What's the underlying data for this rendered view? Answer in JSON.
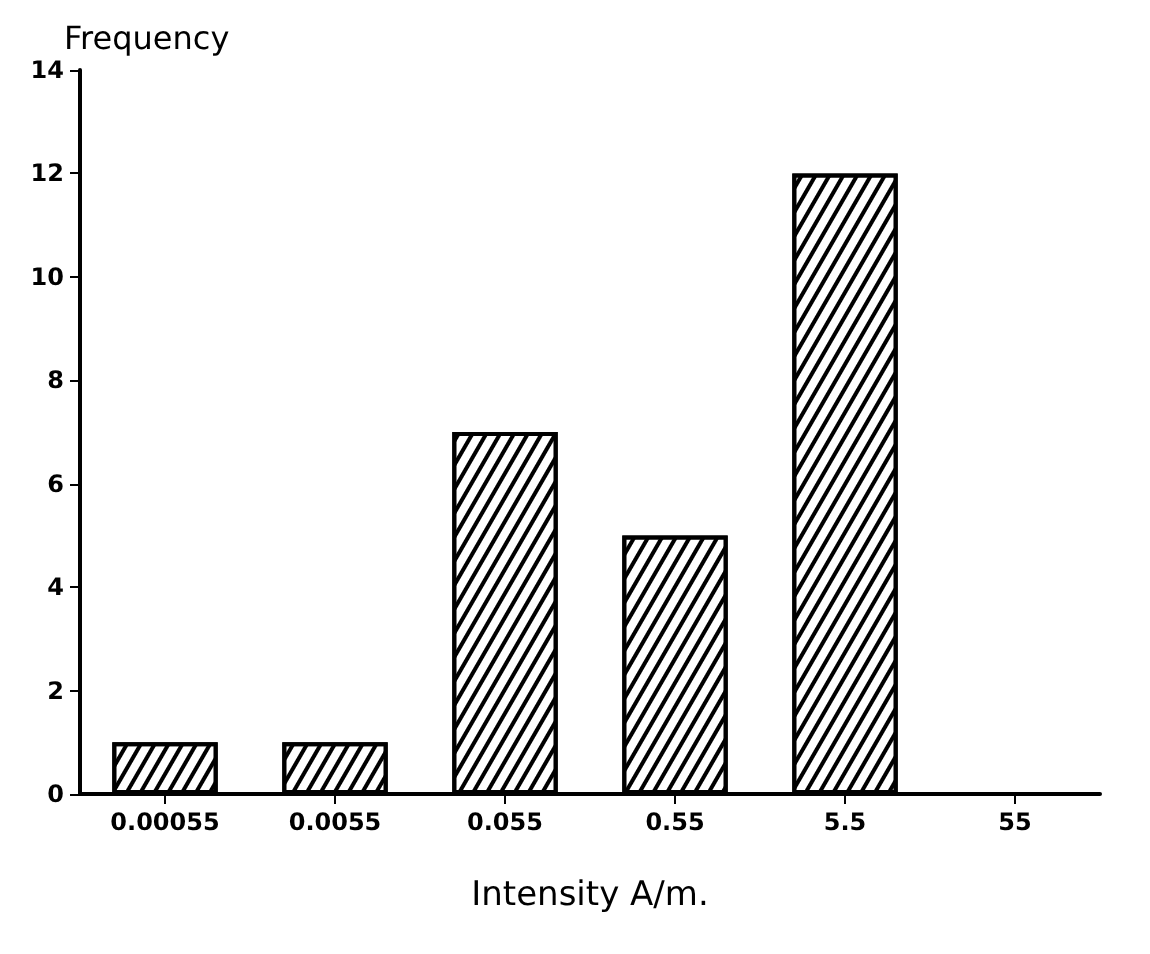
{
  "chart_data": {
    "type": "bar",
    "xlabel": "Intensity A/m.",
    "ylabel": "Frequency",
    "categories": [
      "0.00055",
      "0.0055",
      "0.055",
      "0.55",
      "5.5",
      "55"
    ],
    "values": [
      1,
      1,
      7,
      5,
      12,
      0
    ],
    "color": "#000000",
    "ylim": [
      0,
      14
    ],
    "yticks": [
      0,
      2,
      4,
      6,
      8,
      10,
      12,
      14
    ],
    "grid": false
  }
}
